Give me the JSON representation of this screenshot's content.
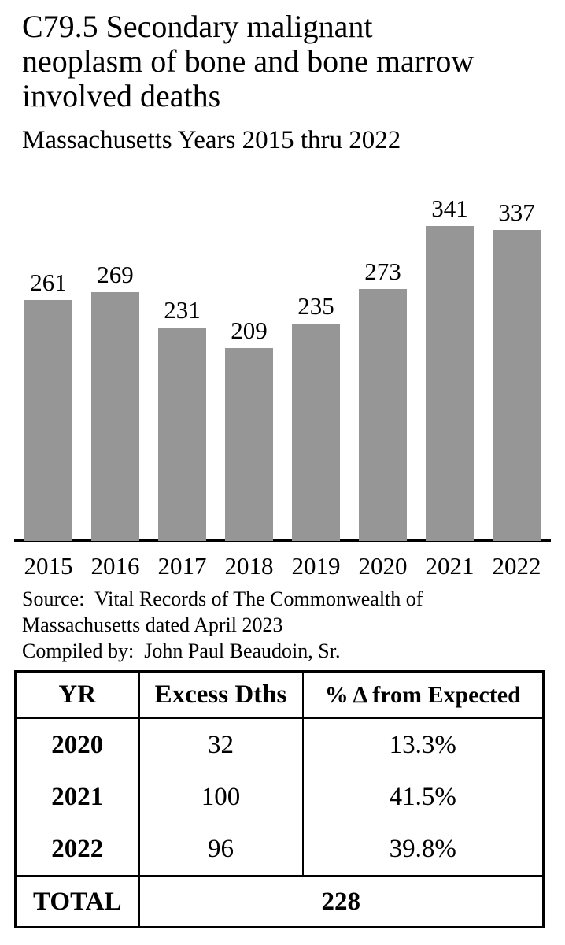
{
  "header": {
    "title_lines": [
      "C79.5 Secondary malignant",
      "neoplasm of bone and bone marrow",
      "involved deaths"
    ],
    "subtitle": "Massachusetts Years 2015 thru 2022"
  },
  "chart_data": {
    "type": "bar",
    "title": "C79.5 Secondary malignant neoplasm of bone and bone marrow involved deaths",
    "subtitle": "Massachusetts Years 2015 thru 2022",
    "categories": [
      "2015",
      "2016",
      "2017",
      "2018",
      "2019",
      "2020",
      "2021",
      "2022"
    ],
    "values": [
      261,
      269,
      231,
      209,
      235,
      273,
      341,
      337
    ],
    "bar_color": "#969696",
    "axis_color": "#000000",
    "data_labels": true,
    "legend": false,
    "grid": false,
    "ylim": [
      0,
      341
    ],
    "xlabel": "",
    "ylabel": ""
  },
  "source": {
    "line1": "Source:  Vital Records of The Commonwealth of",
    "line2": "Massachusetts dated April 2023",
    "line3": "Compiled by:  John Paul Beaudoin, Sr."
  },
  "table": {
    "headers": [
      "YR",
      "Excess Dths",
      "% Δ from Expected"
    ],
    "rows": [
      {
        "yr": "2020",
        "excess": "32",
        "pct": "13.3%"
      },
      {
        "yr": "2021",
        "excess": "100",
        "pct": "41.5%"
      },
      {
        "yr": "2022",
        "excess": "96",
        "pct": "39.8%"
      }
    ],
    "total_label": "TOTAL",
    "total_value": "228"
  }
}
